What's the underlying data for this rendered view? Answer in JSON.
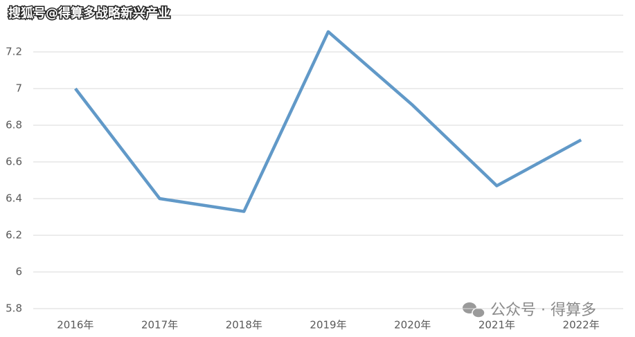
{
  "chart_data": {
    "type": "line",
    "categories": [
      "2016年",
      "2017年",
      "2018年",
      "2019年",
      "2020年",
      "2021年",
      "2022年"
    ],
    "values": [
      7.0,
      6.4,
      6.33,
      7.31,
      6.91,
      6.47,
      6.72
    ],
    "color": "#6199c8",
    "ylim": [
      5.8,
      7.4
    ],
    "yticks": [
      5.8,
      6,
      6.2,
      6.4,
      6.6,
      6.8,
      7,
      7.2
    ],
    "grid": true,
    "watermarks": [
      "搜狐号@得算多战略新兴产业",
      "公众号 · 得算多"
    ]
  }
}
